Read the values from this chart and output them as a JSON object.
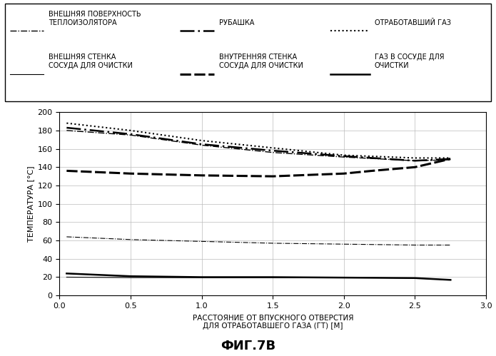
{
  "title": "ФИГ.7В",
  "xlabel": "РАССТОЯНИЕ ОТ ВПУСКНОГО ОТВЕРСТИЯ\nДЛЯ ОТРАБОТАВШЕГО ГАЗА (ГТ) [М]",
  "ylabel": "ТЕМПЕРАТУРА [°С]",
  "xlim": [
    0.0,
    3.0
  ],
  "ylim": [
    0,
    200
  ],
  "xticks": [
    0.0,
    0.5,
    1.0,
    1.5,
    2.0,
    2.5,
    3.0
  ],
  "yticks": [
    0,
    20,
    40,
    60,
    80,
    100,
    120,
    140,
    160,
    180,
    200
  ],
  "curves": {
    "outer_insulator": {
      "x": [
        0.05,
        0.5,
        1.0,
        1.5,
        2.0,
        2.5,
        2.75
      ],
      "y": [
        180,
        175,
        164,
        156,
        151,
        147,
        148
      ],
      "linestyle": "dashdot",
      "color": "#000000",
      "linewidth": 1.0,
      "dashes": null
    },
    "jacket": {
      "x": [
        0.05,
        0.5,
        1.0,
        1.5,
        2.0,
        2.5,
        2.75
      ],
      "y": [
        183,
        176,
        165,
        158,
        152,
        147,
        149
      ],
      "linestyle": "custom_dashdot2",
      "color": "#000000",
      "linewidth": 1.8,
      "dashes": [
        8,
        2,
        1,
        2
      ]
    },
    "exhaust_gas": {
      "x": [
        0.05,
        0.5,
        1.0,
        1.5,
        2.0,
        2.5,
        2.75
      ],
      "y": [
        188,
        180,
        169,
        161,
        153,
        150,
        150
      ],
      "linestyle": "dotted",
      "color": "#000000",
      "linewidth": 1.5,
      "dashes": null
    },
    "outer_wall": {
      "x": [
        0.05,
        0.5,
        1.0,
        1.5,
        2.0,
        2.5,
        2.75
      ],
      "y": [
        20,
        19.5,
        19.5,
        19.5,
        19.5,
        19,
        17
      ],
      "linestyle": "solid",
      "color": "#000000",
      "linewidth": 0.8,
      "dashes": null
    },
    "inner_wall": {
      "x": [
        0.05,
        0.5,
        1.0,
        1.5,
        2.0,
        2.2,
        2.5,
        2.75
      ],
      "y": [
        136,
        133,
        131,
        130,
        133,
        136,
        140,
        149
      ],
      "linestyle": "dashed",
      "color": "#000000",
      "linewidth": 2.2,
      "dashes": [
        5,
        1.5
      ]
    },
    "gas_in_vessel": {
      "x": [
        0.05,
        0.5,
        1.0,
        1.5,
        2.0,
        2.5,
        2.75
      ],
      "y": [
        24,
        21,
        20,
        20,
        19.5,
        19,
        17
      ],
      "linestyle": "solid",
      "color": "#000000",
      "linewidth": 1.8,
      "dashes": null
    },
    "mid_dashdot": {
      "x": [
        0.05,
        0.5,
        1.0,
        1.5,
        2.0,
        2.5,
        2.75
      ],
      "y": [
        64,
        61,
        59,
        57,
        56,
        55,
        55
      ],
      "linestyle": "dashdot",
      "color": "#000000",
      "linewidth": 0.8,
      "dashes": null
    }
  },
  "legend": {
    "row1": [
      {
        "label": "ВНЕШНЯЯ ПОВЕРХНОСТЬ\nТЕПЛОИЗОЛЯТОРА",
        "ls": "dashdot",
        "lw": 1.0,
        "dashes": null
      },
      {
        "label": "РУБАШКА",
        "ls": "custom",
        "lw": 1.8,
        "dashes": [
          8,
          2,
          1,
          2
        ]
      },
      {
        "label": "ОТРАБОТАВШИЙ ГАЗ",
        "ls": "dotted",
        "lw": 1.5,
        "dashes": null
      }
    ],
    "row2": [
      {
        "label": "ВНЕШНЯЯ СТЕНКА\nСОСУДА ДЛЯ ОЧИСТКИ",
        "ls": "solid",
        "lw": 0.8,
        "dashes": null
      },
      {
        "label": "ВНУТРЕННЯЯ СТЕНКА\nСОСУДА ДЛЯ ОЧИСТКИ",
        "ls": "dashed",
        "lw": 2.2,
        "dashes": [
          5,
          1.5
        ]
      },
      {
        "label": "ГАЗ В СОСУДЕ ДЛЯ\nОЧИСТКИ",
        "ls": "solid",
        "lw": 1.8,
        "dashes": null
      }
    ]
  }
}
